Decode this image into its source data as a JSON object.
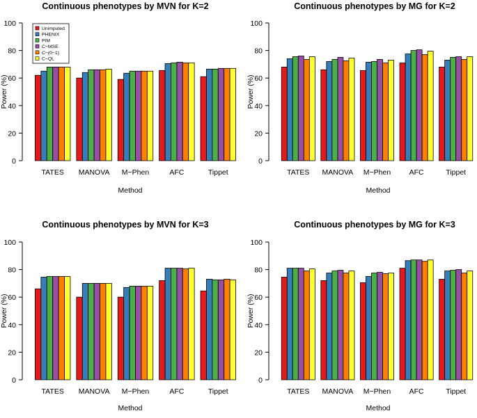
{
  "chart_data": [
    {
      "type": "bar",
      "title": "Continuous phenotypes by MVN for K=2",
      "xlabel": "Method",
      "ylabel": "Power (%)",
      "ylim": [
        0,
        100
      ],
      "yticks": [
        0,
        20,
        40,
        60,
        80,
        100
      ],
      "categories": [
        "TATES",
        "MANOVA",
        "M−Phen",
        "AFC",
        "Tippet"
      ],
      "legend": "top-left",
      "series": [
        {
          "name": "Unimputed",
          "values": [
            62,
            60,
            59,
            65.5,
            61
          ]
        },
        {
          "name": "PHENIX",
          "values": [
            65,
            64,
            63.5,
            70.5,
            66.5
          ]
        },
        {
          "name": "PIM",
          "values": [
            68,
            66,
            65,
            71,
            66.5
          ]
        },
        {
          "name": "C−MSE",
          "values": [
            68,
            66,
            65,
            71.5,
            67
          ]
        },
        {
          "name": "C−(0−1)",
          "values": [
            68,
            66,
            65,
            71,
            67
          ]
        },
        {
          "name": "C−QL",
          "values": [
            68,
            66.5,
            65,
            71,
            67
          ]
        }
      ]
    },
    {
      "type": "bar",
      "title": "Continuous phenotypes by MG for K=2",
      "xlabel": "Method",
      "ylabel": "Power (%)",
      "ylim": [
        0,
        100
      ],
      "yticks": [
        0,
        20,
        40,
        60,
        80,
        100
      ],
      "categories": [
        "TATES",
        "MANOVA",
        "M−Phen",
        "AFC",
        "Tippet"
      ],
      "series": [
        {
          "name": "Unimputed",
          "values": [
            68,
            66,
            65.5,
            71,
            68
          ]
        },
        {
          "name": "PHENIX",
          "values": [
            74,
            72,
            71.5,
            77.5,
            73
          ]
        },
        {
          "name": "PIM",
          "values": [
            75.5,
            73.5,
            72,
            80,
            75
          ]
        },
        {
          "name": "C−MSE",
          "values": [
            76,
            75,
            73.5,
            80.5,
            75.5
          ]
        },
        {
          "name": "C−(0−1)",
          "values": [
            73.5,
            72.5,
            71,
            77,
            73.5
          ]
        },
        {
          "name": "C−QL",
          "values": [
            75.5,
            74.5,
            73,
            79.5,
            75.5
          ]
        }
      ]
    },
    {
      "type": "bar",
      "title": "Continuous phenotypes by MVN for K=3",
      "xlabel": "Method",
      "ylabel": "Power (%)",
      "ylim": [
        0,
        100
      ],
      "yticks": [
        0,
        20,
        40,
        60,
        80,
        100
      ],
      "categories": [
        "TATES",
        "MANOVA",
        "M−Phen",
        "AFC",
        "Tippet"
      ],
      "series": [
        {
          "name": "Unimputed",
          "values": [
            66,
            60,
            60,
            72,
            64.5
          ]
        },
        {
          "name": "PHENIX",
          "values": [
            74.5,
            70,
            67,
            81,
            73
          ]
        },
        {
          "name": "PIM",
          "values": [
            75,
            70,
            68,
            81,
            72.5
          ]
        },
        {
          "name": "C−MSE",
          "values": [
            75,
            70,
            68,
            81,
            72.5
          ]
        },
        {
          "name": "C−(0−1)",
          "values": [
            75,
            70,
            68,
            80.5,
            73
          ]
        },
        {
          "name": "C−QL",
          "values": [
            75,
            70,
            68,
            81,
            72.5
          ]
        }
      ]
    },
    {
      "type": "bar",
      "title": "Continuous phenotypes by MG for K=3",
      "xlabel": "Method",
      "ylabel": "Power (%)",
      "ylim": [
        0,
        100
      ],
      "yticks": [
        0,
        20,
        40,
        60,
        80,
        100
      ],
      "categories": [
        "TATES",
        "MANOVA",
        "M−Phen",
        "AFC",
        "Tippet"
      ],
      "series": [
        {
          "name": "Unimputed",
          "values": [
            74.5,
            72,
            70.5,
            81,
            73
          ]
        },
        {
          "name": "PHENIX",
          "values": [
            81,
            77.5,
            75,
            86.5,
            79
          ]
        },
        {
          "name": "PIM",
          "values": [
            81,
            79,
            77.5,
            87,
            79.5
          ]
        },
        {
          "name": "C−MSE",
          "values": [
            81,
            79.5,
            78,
            87,
            80
          ]
        },
        {
          "name": "C−(0−1)",
          "values": [
            79,
            77.5,
            77,
            86,
            77.5
          ]
        },
        {
          "name": "C−QL",
          "values": [
            80.5,
            79,
            77.5,
            87,
            79
          ]
        }
      ]
    }
  ],
  "colors": {
    "series": [
      "#e41a1c",
      "#377eb8",
      "#4daf4a",
      "#984ea3",
      "#ff7f00",
      "#ffff33"
    ],
    "axis": "#000000"
  }
}
